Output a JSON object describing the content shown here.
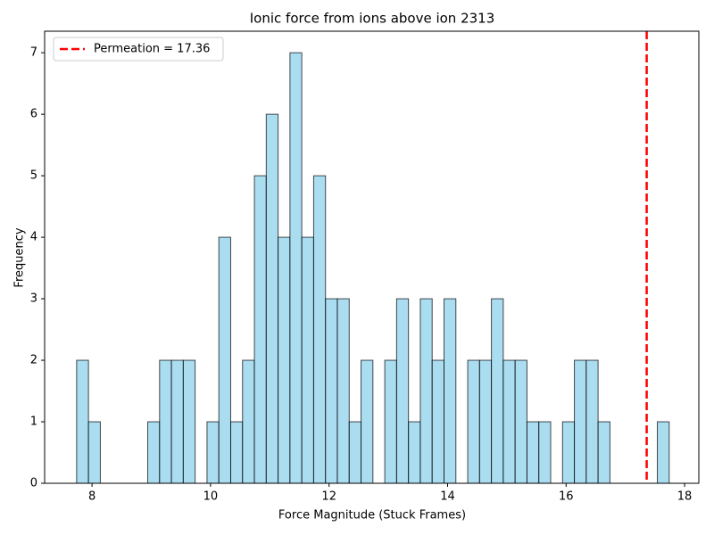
{
  "chart_data": {
    "type": "histogram",
    "title": "Ionic force from ions above ion 2313",
    "x_label": "Force Magnitude (Stuck Frames)",
    "y_label": "Frequency",
    "bins": [
      7.74,
      7.94,
      8.14,
      8.34,
      8.54,
      8.74,
      8.94,
      9.14,
      9.34,
      9.54,
      9.74,
      9.94,
      10.14,
      10.34,
      10.54,
      10.74,
      10.94,
      11.14,
      11.34,
      11.54,
      11.74,
      11.94,
      12.14,
      12.34,
      12.54,
      12.74,
      12.94,
      13.14,
      13.34,
      13.54,
      13.74,
      13.94,
      14.14,
      14.34,
      14.54,
      14.74,
      14.94,
      15.14,
      15.34,
      15.54,
      15.74,
      15.94,
      16.14,
      16.34,
      16.54,
      16.74,
      16.94,
      17.14,
      17.34,
      17.54,
      17.74
    ],
    "values": [
      2,
      1,
      0,
      0,
      0,
      0,
      1,
      2,
      2,
      2,
      0,
      1,
      4,
      1,
      2,
      5,
      6,
      4,
      7,
      4,
      5,
      3,
      3,
      1,
      2,
      0,
      2,
      3,
      1,
      3,
      2,
      3,
      0,
      2,
      2,
      3,
      2,
      2,
      1,
      1,
      0,
      1,
      2,
      2,
      1,
      0,
      0,
      0,
      0,
      1
    ],
    "color": "#87ceeb",
    "edge_color": "#000000",
    "vline": {
      "value": 17.36,
      "label": "Permeation = 17.36",
      "color": "#ff0000"
    },
    "legend": "upper left",
    "xlim": [
      7.2,
      18.24
    ],
    "ylim": [
      0,
      7.35
    ],
    "xticks": [
      8,
      10,
      12,
      14,
      16,
      18
    ],
    "yticks": [
      0,
      1,
      2,
      3,
      4,
      5,
      6,
      7
    ]
  }
}
